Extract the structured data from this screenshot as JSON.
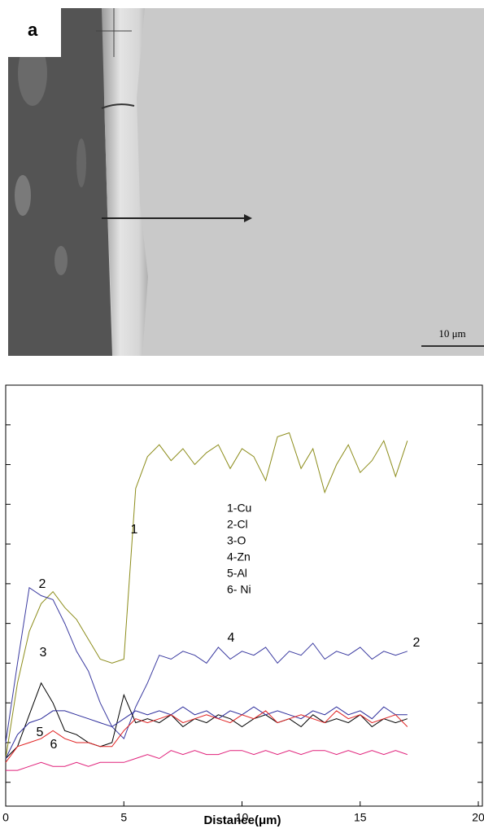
{
  "image": {
    "label": "a",
    "scale_bar": "10 μm"
  },
  "chart_data": {
    "type": "line",
    "xlabel": "Distance(μm)",
    "x": [
      0,
      0.5,
      1,
      1.5,
      2,
      2.5,
      3,
      3.5,
      4,
      4.5,
      5,
      5.5,
      6,
      6.5,
      7,
      7.5,
      8,
      8.5,
      9,
      9.5,
      10,
      10.5,
      11,
      11.5,
      12,
      12.5,
      13,
      13.5,
      14,
      14.5,
      15,
      15.5,
      16,
      16.5,
      17
    ],
    "series": [
      {
        "name": "1-Cu",
        "color": "#8c8c1a",
        "values": [
          0.6,
          2.5,
          3.8,
          4.5,
          4.8,
          4.4,
          4.1,
          3.6,
          3.1,
          3.0,
          3.1,
          7.4,
          8.2,
          8.5,
          8.1,
          8.4,
          8.0,
          8.3,
          8.5,
          7.9,
          8.4,
          8.2,
          7.6,
          8.7,
          8.8,
          7.9,
          8.4,
          7.3,
          8.0,
          8.5,
          7.8,
          8.1,
          8.6,
          7.7,
          8.6
        ]
      },
      {
        "name": "2-Cl",
        "color": "#3a3aa0",
        "values": [
          1.0,
          3.0,
          4.9,
          4.7,
          4.6,
          4.0,
          3.3,
          2.8,
          2.0,
          1.4,
          1.1,
          1.9,
          2.5,
          3.2,
          3.1,
          3.3,
          3.2,
          3.0,
          3.4,
          3.1,
          3.3,
          3.2,
          3.4,
          3.0,
          3.3,
          3.2,
          3.5,
          3.1,
          3.3,
          3.2,
          3.4,
          3.1,
          3.3,
          3.2,
          3.3
        ]
      },
      {
        "name": "3-O",
        "color": "#000000",
        "values": [
          0.6,
          0.9,
          1.7,
          2.5,
          2.0,
          1.3,
          1.2,
          1.0,
          0.9,
          1.0,
          2.2,
          1.5,
          1.6,
          1.5,
          1.7,
          1.4,
          1.6,
          1.5,
          1.7,
          1.6,
          1.4,
          1.6,
          1.7,
          1.5,
          1.6,
          1.4,
          1.7,
          1.5,
          1.6,
          1.5,
          1.7,
          1.4,
          1.6,
          1.5,
          1.6
        ]
      },
      {
        "name": "4-Zn",
        "color": "#2a2a9a",
        "values": [
          0.6,
          1.2,
          1.5,
          1.6,
          1.8,
          1.8,
          1.7,
          1.6,
          1.5,
          1.4,
          1.6,
          1.8,
          1.7,
          1.8,
          1.7,
          1.9,
          1.7,
          1.8,
          1.6,
          1.8,
          1.7,
          1.9,
          1.7,
          1.8,
          1.7,
          1.6,
          1.8,
          1.7,
          1.9,
          1.7,
          1.8,
          1.6,
          1.9,
          1.7,
          1.7
        ]
      },
      {
        "name": "5-Al",
        "color": "#e02020",
        "values": [
          0.5,
          0.9,
          1.0,
          1.1,
          1.3,
          1.1,
          1.0,
          1.0,
          0.9,
          0.9,
          1.3,
          1.6,
          1.5,
          1.6,
          1.7,
          1.5,
          1.6,
          1.7,
          1.6,
          1.5,
          1.7,
          1.6,
          1.8,
          1.5,
          1.6,
          1.7,
          1.6,
          1.5,
          1.8,
          1.6,
          1.7,
          1.5,
          1.6,
          1.7,
          1.4
        ]
      },
      {
        "name": "6- Ni",
        "color": "#e0207a",
        "values": [
          0.3,
          0.3,
          0.4,
          0.5,
          0.4,
          0.4,
          0.5,
          0.4,
          0.5,
          0.5,
          0.5,
          0.6,
          0.7,
          0.6,
          0.8,
          0.7,
          0.8,
          0.7,
          0.7,
          0.8,
          0.8,
          0.7,
          0.8,
          0.7,
          0.8,
          0.7,
          0.8,
          0.8,
          0.7,
          0.8,
          0.7,
          0.8,
          0.7,
          0.8,
          0.7
        ]
      }
    ],
    "annotations": [
      "1",
      "2",
      "3",
      "4",
      "2",
      "5",
      "6"
    ],
    "xlim": [
      0,
      20
    ],
    "xticks": [
      0,
      5,
      10,
      15,
      20
    ],
    "ylim": [
      -0.6,
      10
    ],
    "yticks": [
      0,
      1,
      2,
      3,
      4,
      5,
      6,
      7,
      8,
      9
    ]
  }
}
